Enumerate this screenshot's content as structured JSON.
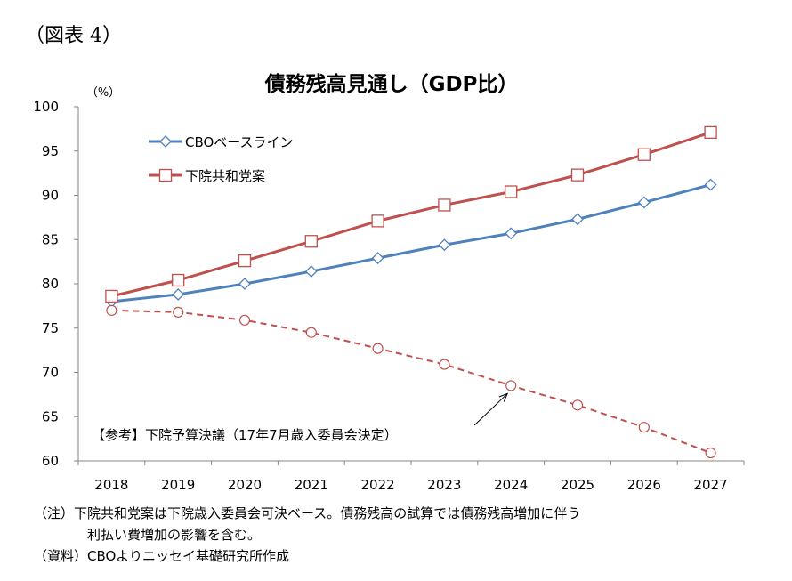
{
  "figure_label": "（図表 4）",
  "notes": {
    "line1": "（注）下院共和党案は下院歳入委員会可決ベース。債務残高の試算では債務残高増加に伴う",
    "line2": "利払い費増加の影響を含む。",
    "source": "（資料）CBOよりニッセイ基礎研究所作成"
  },
  "colors": {
    "cbo": "#4F81BD",
    "house": "#C0504D",
    "committee": "#C0504D",
    "axis": "#868686"
  },
  "chart_data": {
    "type": "line",
    "title": "債務残高見通し（GDP比）",
    "ylabel": "（%）",
    "xlabel": "",
    "x": [
      2018,
      2019,
      2020,
      2021,
      2022,
      2023,
      2024,
      2025,
      2026,
      2027
    ],
    "ylim": [
      60,
      100
    ],
    "yticks": [
      60,
      65,
      70,
      75,
      80,
      85,
      90,
      95,
      100
    ],
    "grid": false,
    "legend": "top-left",
    "series": [
      {
        "name": "CBOベースライン",
        "style": "solid",
        "marker": "diamond",
        "values": [
          78.0,
          78.8,
          80.0,
          81.4,
          82.9,
          84.4,
          85.7,
          87.3,
          89.2,
          91.2
        ]
      },
      {
        "name": "下院共和党案",
        "style": "solid",
        "marker": "square",
        "values": [
          78.6,
          80.4,
          82.6,
          84.8,
          87.1,
          88.9,
          90.4,
          92.3,
          94.6,
          97.1
        ]
      },
      {
        "name": "",
        "style": "dashed",
        "marker": "circle",
        "values": [
          77.0,
          76.8,
          75.9,
          74.5,
          72.7,
          70.9,
          68.5,
          66.3,
          63.8,
          60.9
        ]
      }
    ],
    "annotation": {
      "text": "【参考】下院予算決議（17年7月歳入委員会決定）",
      "points_to": 2024
    }
  }
}
